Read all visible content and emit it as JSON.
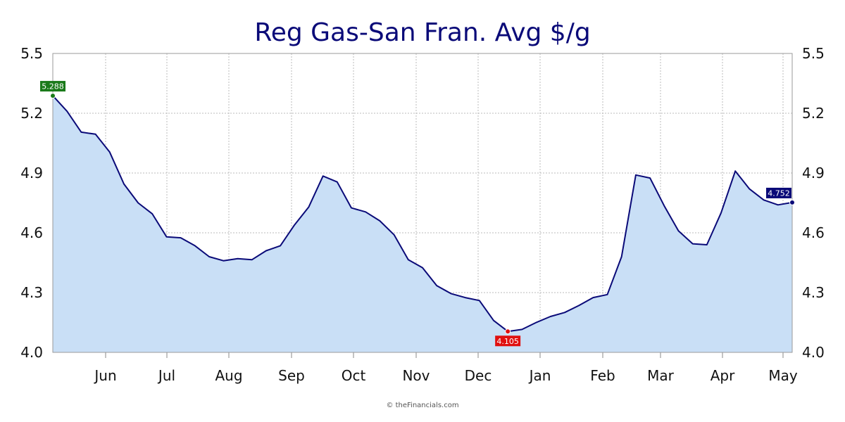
{
  "chart_data": {
    "type": "area",
    "title": "Reg Gas-San Fran. Avg $/g",
    "xlabel": "",
    "ylabel": "",
    "y_ticks": [
      "4.0",
      "4.3",
      "4.6",
      "4.9",
      "5.2",
      "5.5"
    ],
    "ylim": [
      4.0,
      5.5
    ],
    "month_labels": [
      "Jun",
      "Jul",
      "Aug",
      "Sep",
      "Oct",
      "Nov",
      "Dec",
      "Jan",
      "Feb",
      "Mar",
      "Apr",
      "May"
    ],
    "grid": true,
    "series": [
      {
        "values": [
          5.288,
          5.21,
          5.105,
          5.095,
          5.005,
          4.845,
          4.75,
          4.695,
          4.58,
          4.575,
          4.535,
          4.48,
          4.46,
          4.47,
          4.465,
          4.51,
          4.535,
          4.64,
          4.73,
          4.885,
          4.855,
          4.725,
          4.705,
          4.66,
          4.59,
          4.465,
          4.425,
          4.335,
          4.295,
          4.275,
          4.26,
          4.16,
          4.105,
          4.115,
          4.15,
          4.18,
          4.2,
          4.235,
          4.275,
          4.29,
          4.48,
          4.89,
          4.875,
          4.735,
          4.61,
          4.545,
          4.54,
          4.7,
          4.91,
          4.82,
          4.765,
          4.74,
          4.752
        ]
      }
    ],
    "callouts": {
      "high": {
        "label": "5.288",
        "index": 0,
        "color": "#1a7a1a"
      },
      "low": {
        "label": "4.105",
        "index": 32,
        "color": "#e01010"
      },
      "last": {
        "label": "4.752",
        "index": 52,
        "color": "#0a0a78"
      }
    },
    "colors": {
      "line": "#0a0a78",
      "fill": "#c9dff6",
      "grid": "#bbbbbb"
    }
  },
  "footer": {
    "credit": "© theFinancials.com"
  }
}
